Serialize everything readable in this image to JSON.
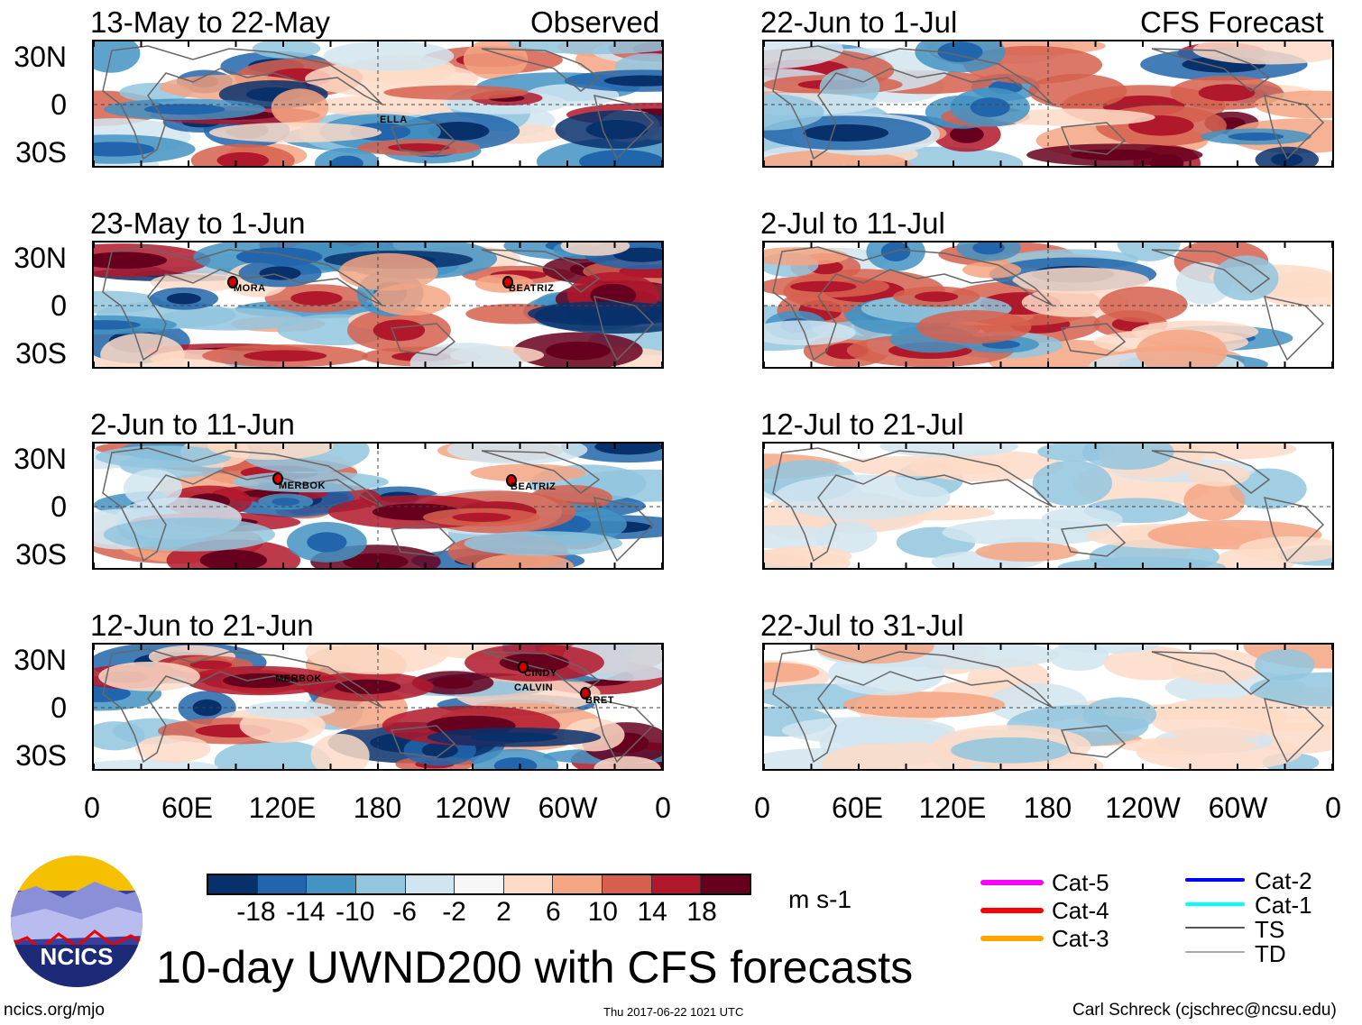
{
  "headers": {
    "observed": "Observed",
    "forecast": "CFS Forecast"
  },
  "panels_left": [
    {
      "title": "13-May to 22-May"
    },
    {
      "title": "23-May to 1-Jun"
    },
    {
      "title": "2-Jun to 11-Jun"
    },
    {
      "title": "12-Jun to 21-Jun"
    }
  ],
  "panels_right": [
    {
      "title": "22-Jun to 1-Jul"
    },
    {
      "title": "2-Jul to 11-Jul"
    },
    {
      "title": "12-Jul to 21-Jul"
    },
    {
      "title": "22-Jul to 31-Jul"
    }
  ],
  "lat_labels": [
    "30N",
    "0",
    "30S"
  ],
  "lon_labels": [
    "0",
    "60E",
    "120E",
    "180",
    "120W",
    "60W",
    "0"
  ],
  "storms": {
    "p1": [
      "ELLA"
    ],
    "p2": [
      "MORA",
      "BEATRIZ"
    ],
    "p3": [
      "MERBOK",
      "BEATRIZ"
    ],
    "p4": [
      "MERBOK",
      "CINDY",
      "CALVIN",
      "BRET"
    ]
  },
  "colorbar": {
    "colors": [
      "#08306b",
      "#2166ac",
      "#4393c3",
      "#92c5de",
      "#d1e5f0",
      "#f7f7f7",
      "#fddbc7",
      "#f4a582",
      "#d6604d",
      "#b2182b",
      "#67001f"
    ],
    "labels": [
      "-18",
      "-14",
      "-10",
      "-6",
      "-2",
      "2",
      "6",
      "10",
      "14",
      "18"
    ],
    "units": "m s-1"
  },
  "track_legend": [
    {
      "label": "Cat-5",
      "color": "#ff00ff"
    },
    {
      "label": "Cat-4",
      "color": "#ff0000"
    },
    {
      "label": "Cat-3",
      "color": "#ffa500"
    },
    {
      "label": "Cat-2",
      "color": "#0000ff"
    },
    {
      "label": "Cat-1",
      "color": "#00ffff"
    },
    {
      "label": "TS",
      "color": "#555555"
    },
    {
      "label": "TD",
      "color": "#aaaaaa"
    }
  ],
  "logo_text": "NCICS",
  "main_title": "10-day UWND200 with CFS forecasts",
  "footer": {
    "left": "ncics.org/mjo",
    "center": "Thu 2017-06-22 1021 UTC",
    "right": "Carl Schreck (cjschrec@ncsu.edu)"
  }
}
